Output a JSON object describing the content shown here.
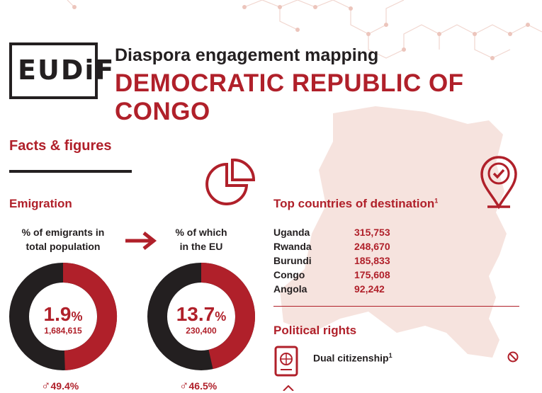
{
  "header": {
    "logo_text": "EUDiF",
    "title": "Diaspora engagement mapping",
    "country": "DEMOCRATIC REPUBLIC OF CONGO"
  },
  "facts": {
    "heading": "Facts & figures"
  },
  "emigration": {
    "heading": "Emigration",
    "total": {
      "label_line1": "% of emigrants in",
      "label_line2": "total population",
      "percent": "1.9",
      "percent_sign": "%",
      "absolute": "1,684,615",
      "male_share": "49.4%",
      "fraction": 0.494
    },
    "eu": {
      "label_line1": "% of which",
      "label_line2": "in the EU",
      "percent": "13.7",
      "percent_sign": "%",
      "absolute": "230,400",
      "male_share": "46.5%",
      "fraction": 0.465
    }
  },
  "destinations": {
    "heading": "Top countries of destination",
    "footnote": "1",
    "rows": [
      {
        "country": "Uganda",
        "value": "315,753"
      },
      {
        "country": "Rwanda",
        "value": "248,670"
      },
      {
        "country": "Burundi",
        "value": "185,833"
      },
      {
        "country": "Congo",
        "value": "175,608"
      },
      {
        "country": "Angola",
        "value": "92,242"
      }
    ]
  },
  "political": {
    "heading": "Political rights",
    "dual_citizenship_label": "Dual citizenship",
    "footnote": "1"
  },
  "colors": {
    "accent": "#b0202a",
    "dark": "#231f20",
    "map": "#f6e3de"
  }
}
